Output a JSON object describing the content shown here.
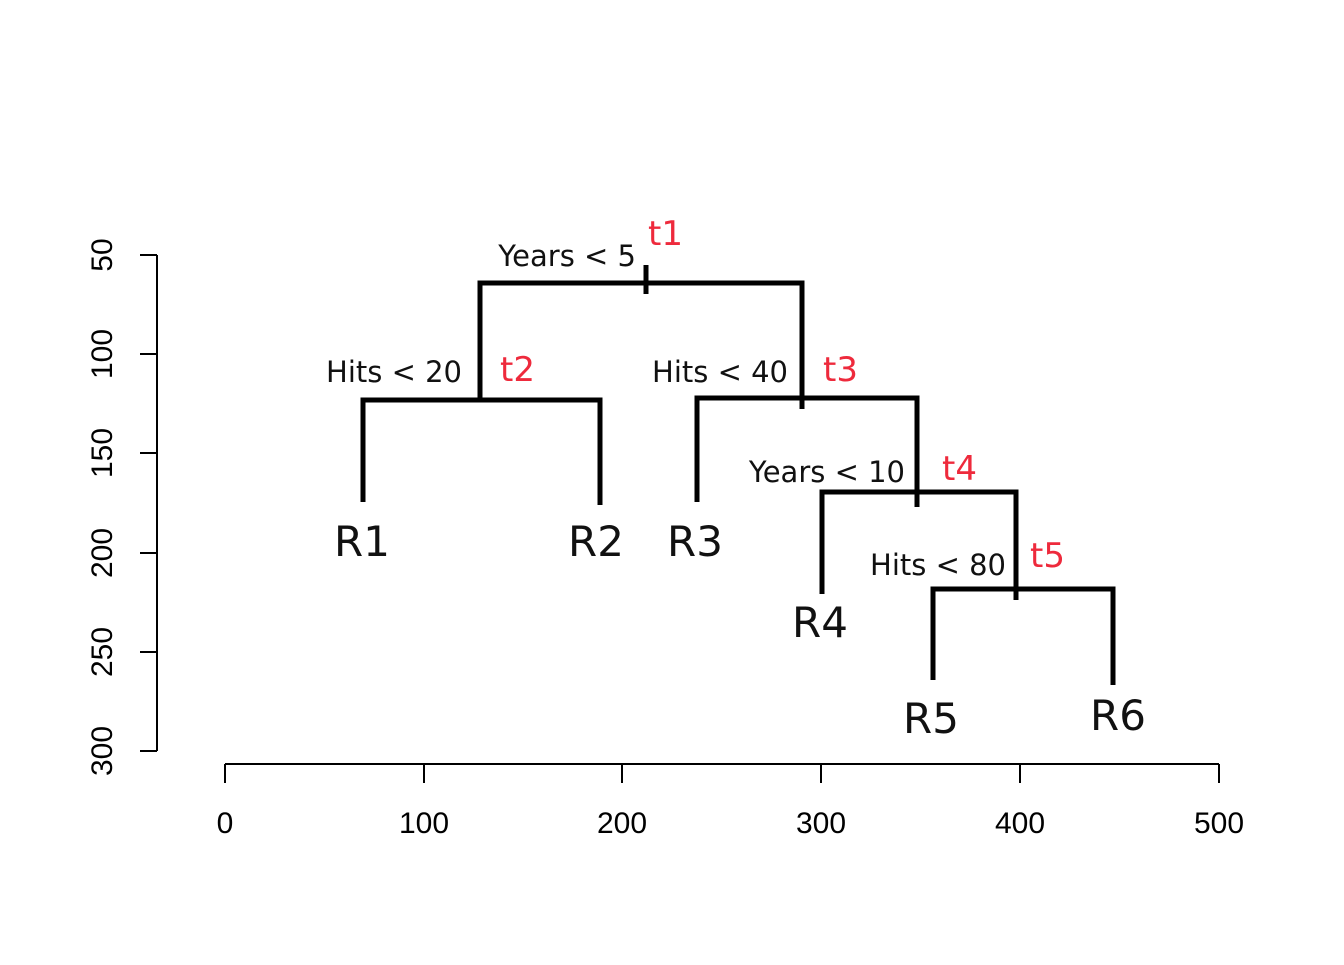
{
  "x_axis": {
    "ticks": [
      "0",
      "100",
      "200",
      "300",
      "400",
      "500"
    ]
  },
  "y_axis": {
    "ticks": [
      "50",
      "100",
      "150",
      "200",
      "250",
      "300"
    ]
  },
  "splits": [
    {
      "id": "t1",
      "label": "t1",
      "condition": "Years < 5"
    },
    {
      "id": "t2",
      "label": "t2",
      "condition": "Hits < 20"
    },
    {
      "id": "t3",
      "label": "t3",
      "condition": "Hits < 40"
    },
    {
      "id": "t4",
      "label": "t4",
      "condition": "Years < 10"
    },
    {
      "id": "t5",
      "label": "t5",
      "condition": "Hits < 80"
    }
  ],
  "leaves": [
    "R1",
    "R2",
    "R3",
    "R4",
    "R5",
    "R6"
  ],
  "colors": {
    "lines": "#000000",
    "split_labels": "#ee2a3c"
  }
}
